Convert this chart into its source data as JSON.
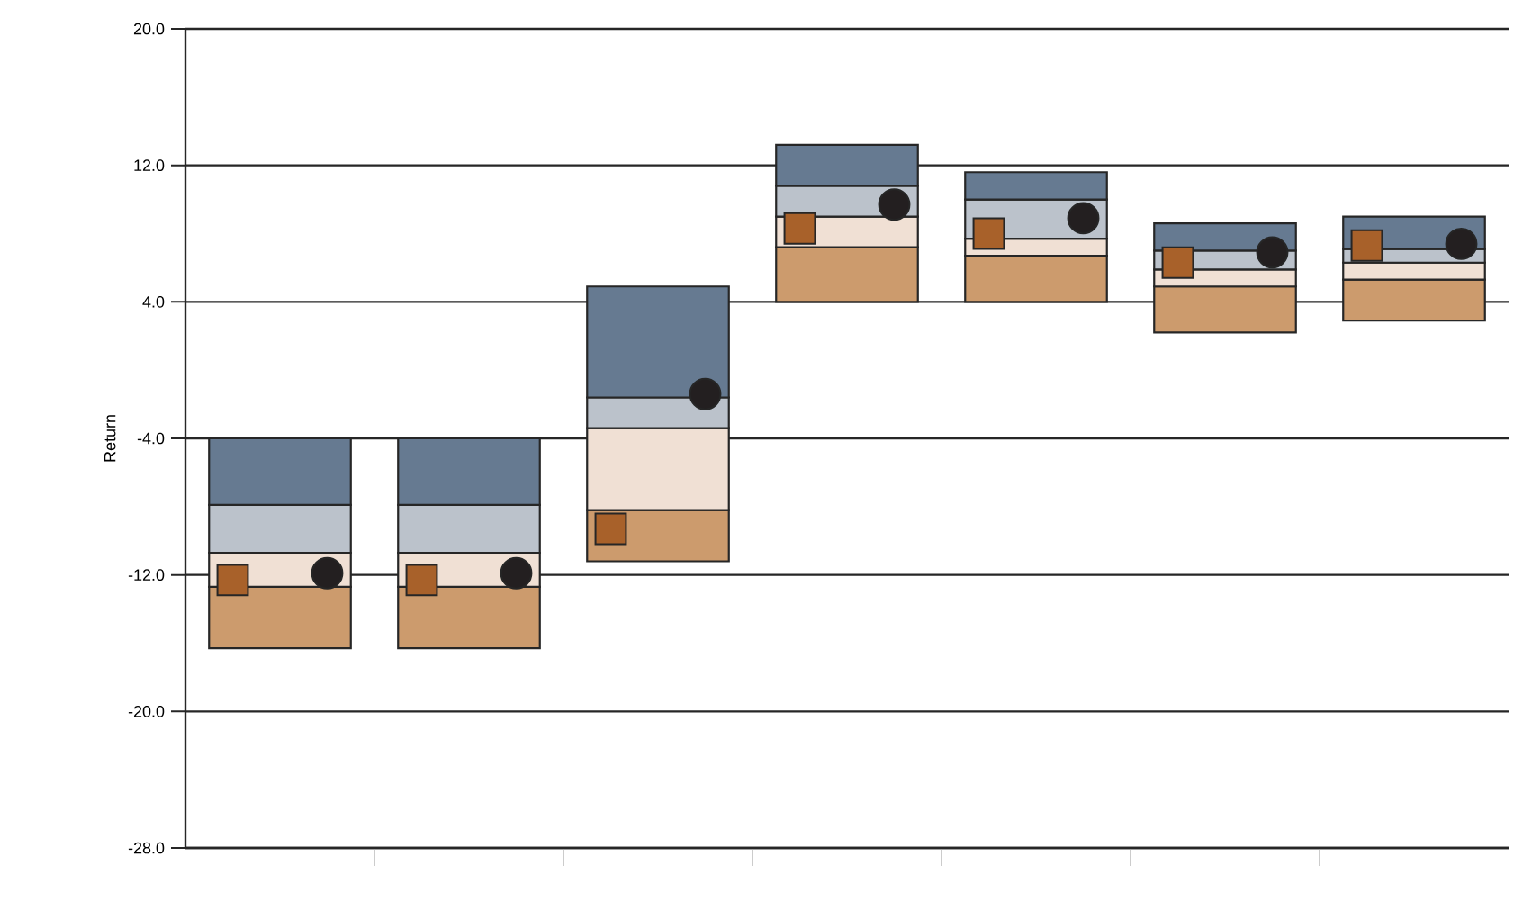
{
  "chart_data": {
    "type": "bar",
    "ylabel": "Return",
    "categories": [
      null,
      null,
      null,
      null,
      null,
      null,
      null
    ],
    "series": [
      {
        "color": "#cc9b6d",
        "base": [
          -16.3,
          -16.3,
          -11.2,
          4.0,
          4.0,
          2.2,
          2.9
        ],
        "values": [
          3.6,
          3.6,
          3.0,
          3.2,
          2.7,
          2.7,
          2.4
        ]
      },
      {
        "color": "#f0e0d4",
        "base": [
          -12.7,
          -12.7,
          -8.2,
          7.2,
          6.7,
          4.9,
          5.3
        ],
        "values": [
          2.0,
          2.0,
          4.8,
          1.8,
          1.0,
          1.0,
          1.0
        ]
      },
      {
        "color": "#bbc2cb",
        "base": [
          -10.7,
          -10.7,
          -3.4,
          9.0,
          7.7,
          5.9,
          6.3
        ],
        "values": [
          2.8,
          2.8,
          1.8,
          1.8,
          2.3,
          1.1,
          0.8
        ]
      },
      {
        "color": "#667a91",
        "base": [
          -7.9,
          -7.9,
          -1.6,
          10.8,
          10.0,
          7.0,
          7.1
        ],
        "values": [
          3.9,
          3.9,
          6.5,
          2.4,
          1.6,
          1.6,
          1.9
        ]
      },
      {
        "type": "scatter",
        "marker": "square",
        "color": "#a8612a",
        "values": [
          -12.3,
          -12.3,
          -9.3,
          8.3,
          8.0,
          6.3,
          7.3
        ]
      },
      {
        "type": "scatter",
        "marker": "circle",
        "color": "#231f20",
        "values": [
          -11.9,
          -11.9,
          -1.4,
          9.7,
          8.9,
          6.9,
          7.4
        ]
      }
    ],
    "ylim": [
      -28,
      20
    ],
    "yticks": [
      {
        "value": -28,
        "label": "-28.0"
      },
      {
        "value": -20,
        "label": "-20.0"
      },
      {
        "value": -12,
        "label": "-12.0"
      },
      {
        "value": -4,
        "label": "-4.0"
      },
      {
        "value": 4,
        "label": "4.0"
      },
      {
        "value": 12,
        "label": "12.0"
      },
      {
        "value": 20,
        "label": "20.0"
      }
    ],
    "grid": "y",
    "tick_labels": "y"
  }
}
